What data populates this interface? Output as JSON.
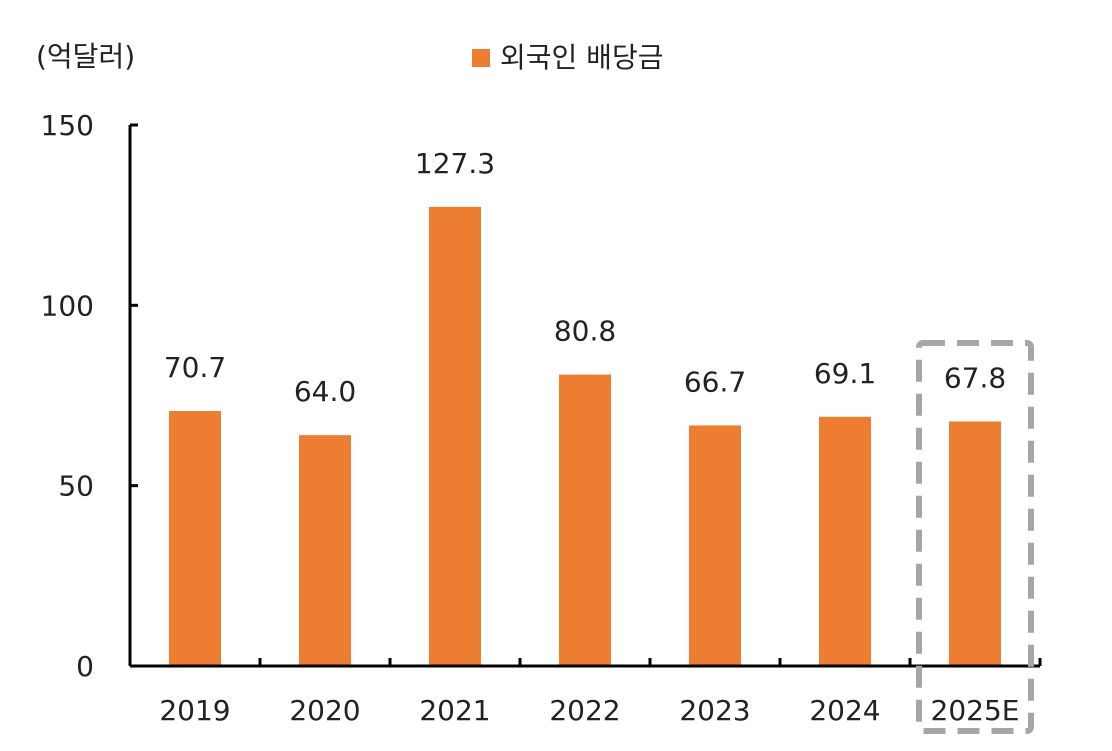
{
  "chart_data": {
    "type": "bar",
    "unit_label": "(억달러)",
    "categories": [
      "2019",
      "2020",
      "2021",
      "2022",
      "2023",
      "2024",
      "2025E"
    ],
    "series": [
      {
        "name": "외국인 배당금",
        "values": [
          70.7,
          64.0,
          127.3,
          80.8,
          66.7,
          69.1,
          67.8
        ],
        "color": "#ED7D31"
      }
    ],
    "data_labels": [
      "70.7",
      "64.0",
      "127.3",
      "80.8",
      "66.7",
      "69.1",
      "67.8"
    ],
    "yticks": [
      "0",
      "50",
      "100",
      "150"
    ],
    "ylim": [
      0,
      150
    ],
    "highlight_category": "2025E",
    "highlight_color": "#A6A6A6",
    "legend_position": "top-center",
    "grid": false
  }
}
